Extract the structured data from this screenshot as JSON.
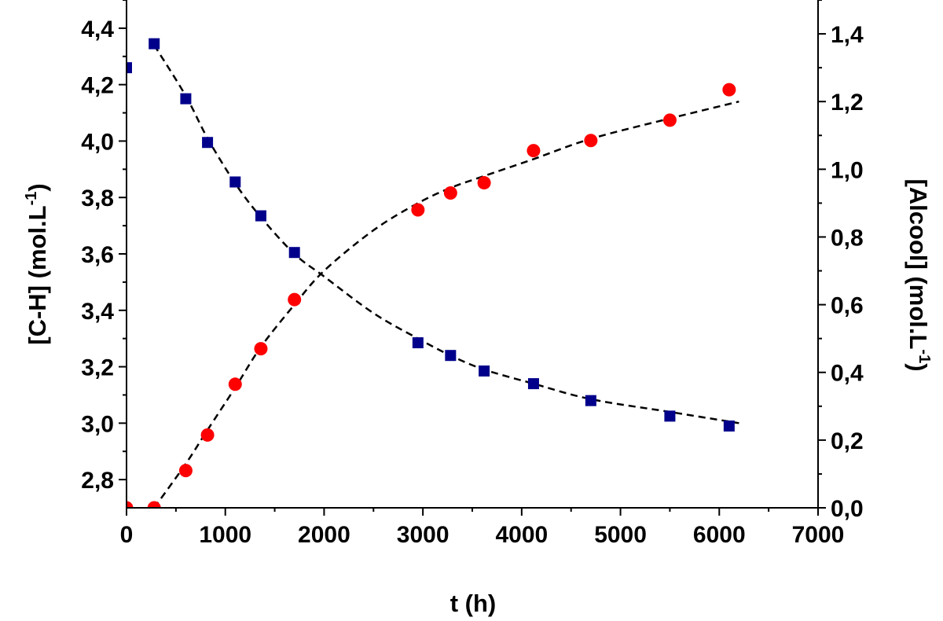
{
  "chart_data": {
    "type": "scatter",
    "title": "",
    "xlabel": "t (h)",
    "ylabel_left": {
      "main": "[C-H] (mol.L",
      "sup": "-1",
      "close": ")"
    },
    "ylabel_right": {
      "main": "[Alcool] (mol.L",
      "sup": "-1",
      "close": ")"
    },
    "xlim": [
      0,
      7000
    ],
    "ylim_left": [
      2.7,
      4.5
    ],
    "ylim_right": [
      0,
      1.5
    ],
    "x_ticks": [
      "0",
      "1000",
      "2000",
      "3000",
      "4000",
      "5000",
      "6000",
      "7000"
    ],
    "x_tick_values": [
      0,
      1000,
      2000,
      3000,
      4000,
      5000,
      6000,
      7000
    ],
    "y_left_ticks": [
      "2,8",
      "3,0",
      "3,2",
      "3,4",
      "3,6",
      "3,8",
      "4,0",
      "4,2",
      "4,4"
    ],
    "y_left_tick_values": [
      2.8,
      3.0,
      3.2,
      3.4,
      3.6,
      3.8,
      4.0,
      4.2,
      4.4
    ],
    "y_right_ticks": [
      "0,0",
      "0,2",
      "0,4",
      "0,6",
      "0,8",
      "1,0",
      "1,2",
      "1,4"
    ],
    "y_right_tick_values": [
      0,
      0.2,
      0.4,
      0.6,
      0.8,
      1.0,
      1.2,
      1.4
    ],
    "grid": false,
    "series": [
      {
        "axis": "left",
        "marker": "square",
        "color": "#00008b",
        "x": [
          0,
          280,
          600,
          820,
          1100,
          1360,
          1700,
          2950,
          3280,
          3620,
          4120,
          4700,
          5500,
          6100
        ],
        "y": [
          4.26,
          4.345,
          4.15,
          3.995,
          3.855,
          3.735,
          3.605,
          3.285,
          3.24,
          3.185,
          3.14,
          3.08,
          3.025,
          2.99
        ]
      },
      {
        "axis": "right",
        "marker": "circle",
        "color": "#ff0000",
        "x": [
          0,
          280,
          600,
          820,
          1100,
          1360,
          1700,
          2950,
          3280,
          3620,
          4120,
          4700,
          5500,
          6100
        ],
        "y": [
          0.0,
          0.0,
          0.11,
          0.215,
          0.365,
          0.47,
          0.615,
          0.88,
          0.93,
          0.96,
          1.055,
          1.085,
          1.145,
          1.235
        ]
      }
    ],
    "fits": [
      {
        "axis": "left",
        "style": "dashed",
        "color": "#000000",
        "x": [
          280,
          600,
          820,
          1100,
          1360,
          1700,
          2000,
          2500,
          2950,
          3280,
          3620,
          4120,
          4700,
          5500,
          6200
        ],
        "y": [
          4.34,
          4.16,
          4.01,
          3.85,
          3.73,
          3.6,
          3.52,
          3.39,
          3.3,
          3.24,
          3.19,
          3.14,
          3.085,
          3.04,
          3.0
        ]
      },
      {
        "axis": "right",
        "style": "dashed",
        "color": "#000000",
        "x": [
          280,
          600,
          820,
          1100,
          1360,
          1700,
          2000,
          2500,
          2950,
          3280,
          3620,
          4120,
          4700,
          5500,
          6200
        ],
        "y": [
          0.0,
          0.13,
          0.23,
          0.355,
          0.475,
          0.6,
          0.7,
          0.82,
          0.9,
          0.945,
          0.98,
          1.03,
          1.09,
          1.15,
          1.2
        ]
      }
    ]
  }
}
